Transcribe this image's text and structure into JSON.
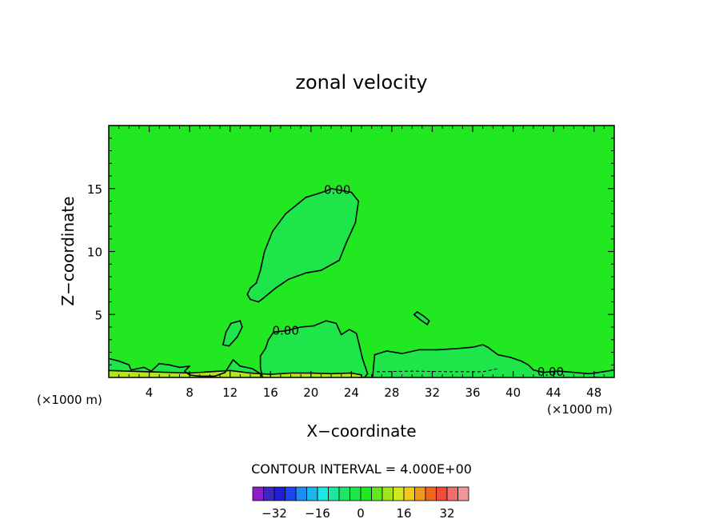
{
  "chart_data": {
    "type": "contour",
    "title": "zonal velocity",
    "xlabel": "X−coordinate",
    "ylabel": "Z−coordinate",
    "x_unit_left": "(×1000 m)",
    "x_unit_right": "(×1000 m)",
    "xlim": [
      0,
      50
    ],
    "ylim": [
      0,
      20
    ],
    "x_ticks": [
      4,
      8,
      12,
      16,
      20,
      24,
      28,
      32,
      36,
      40,
      44,
      48
    ],
    "y_ticks": [
      5,
      10,
      15
    ],
    "background_level_color": "#22e822",
    "contour_interval_text": "CONTOUR INTERVAL = 4.000E+00",
    "contour_labels": [
      {
        "text": "0.00",
        "x": 22.6,
        "y": 14.9
      },
      {
        "text": "0.00",
        "x": 17.5,
        "y": 3.7
      },
      {
        "text": "0.00",
        "x": 43.7,
        "y": 0.45
      }
    ],
    "regions": [
      {
        "name": "upper-positive-lobe",
        "color": "#1ee64a",
        "points": [
          [
            22,
            15
          ],
          [
            24,
            14.7
          ],
          [
            24.7,
            14
          ],
          [
            24.4,
            12.3
          ],
          [
            23.5,
            10.7
          ],
          [
            22.8,
            9.3
          ],
          [
            21,
            8.5
          ],
          [
            19.5,
            8.3
          ],
          [
            17.8,
            7.8
          ],
          [
            16.5,
            7.1
          ],
          [
            15.3,
            6.3
          ],
          [
            14.8,
            6
          ],
          [
            14,
            6.2
          ],
          [
            13.7,
            6.6
          ],
          [
            14,
            7.1
          ],
          [
            14.6,
            7.5
          ],
          [
            15,
            8.5
          ],
          [
            15.4,
            10
          ],
          [
            16.2,
            11.6
          ],
          [
            17.5,
            13
          ],
          [
            19.5,
            14.3
          ],
          [
            21.5,
            14.8
          ]
        ]
      },
      {
        "name": "small-lobe-left",
        "color": "#1ee64a",
        "points": [
          [
            11.3,
            2.6
          ],
          [
            11.6,
            3.6
          ],
          [
            12.1,
            4.3
          ],
          [
            13,
            4.5
          ],
          [
            13.2,
            4
          ],
          [
            12.7,
            3.2
          ],
          [
            11.9,
            2.5
          ]
        ]
      },
      {
        "name": "middle-positive-lobe",
        "color": "#1ee64a",
        "points": [
          [
            15,
            1.7
          ],
          [
            15.5,
            2.3
          ],
          [
            15.8,
            3
          ],
          [
            16.3,
            3.6
          ],
          [
            17.5,
            3.7
          ],
          [
            19,
            4
          ],
          [
            20.3,
            4.1
          ],
          [
            21.5,
            4.5
          ],
          [
            22.5,
            4.3
          ],
          [
            23,
            3.4
          ],
          [
            23.8,
            3.8
          ],
          [
            24.5,
            3.5
          ],
          [
            24.8,
            2.5
          ],
          [
            25.1,
            1.5
          ],
          [
            25.6,
            0.3
          ],
          [
            25.3,
            0
          ],
          [
            15.2,
            0
          ],
          [
            15,
            0.8
          ]
        ]
      },
      {
        "name": "right-positive-lobe",
        "color": "#1ee64a",
        "points": [
          [
            26.3,
            1.8
          ],
          [
            27.5,
            2.1
          ],
          [
            29,
            1.9
          ],
          [
            30.7,
            2.2
          ],
          [
            32.5,
            2.2
          ],
          [
            34.5,
            2.3
          ],
          [
            36,
            2.4
          ],
          [
            37,
            2.6
          ],
          [
            37.5,
            2.4
          ],
          [
            38.5,
            1.8
          ],
          [
            39.7,
            1.6
          ],
          [
            40.8,
            1.3
          ],
          [
            41.5,
            1
          ],
          [
            42,
            0.6
          ],
          [
            43,
            0.4
          ],
          [
            44.5,
            0.5
          ],
          [
            46,
            0.4
          ],
          [
            47.5,
            0.3
          ],
          [
            48.5,
            0.4
          ],
          [
            50,
            0.6
          ],
          [
            50,
            0
          ],
          [
            26.1,
            0
          ]
        ]
      },
      {
        "name": "bottom-left-strip",
        "color": "#1ee64a",
        "points": [
          [
            0,
            1.5
          ],
          [
            1,
            1.3
          ],
          [
            2,
            1
          ],
          [
            2.2,
            0.6
          ],
          [
            3.5,
            0.8
          ],
          [
            4.2,
            0.5
          ],
          [
            5,
            1.1
          ],
          [
            6,
            1
          ],
          [
            7,
            0.8
          ],
          [
            8,
            0.9
          ],
          [
            7.5,
            0.5
          ],
          [
            8,
            0.2
          ],
          [
            9,
            0.1
          ],
          [
            10.5,
            0.1
          ],
          [
            11.5,
            0.4
          ],
          [
            12.3,
            1.4
          ],
          [
            13,
            0.9
          ],
          [
            14.2,
            0.7
          ],
          [
            15,
            0.3
          ],
          [
            15.2,
            0
          ],
          [
            0,
            0
          ]
        ]
      },
      {
        "name": "surface-strip",
        "color": "#b4e61e",
        "points": [
          [
            0,
            0.55
          ],
          [
            4,
            0.45
          ],
          [
            8,
            0.35
          ],
          [
            12,
            0.55
          ],
          [
            14,
            0.35
          ],
          [
            16,
            0.25
          ],
          [
            18,
            0.35
          ],
          [
            20,
            0.35
          ],
          [
            22,
            0.3
          ],
          [
            24,
            0.35
          ],
          [
            25,
            0.2
          ],
          [
            25,
            0
          ],
          [
            0,
            0
          ]
        ]
      },
      {
        "name": "small-oval",
        "color": "#1ee64a",
        "points": [
          [
            30.2,
            5
          ],
          [
            30.8,
            4.6
          ],
          [
            31.5,
            4.2
          ],
          [
            31.7,
            4.5
          ],
          [
            31.1,
            4.9
          ],
          [
            30.5,
            5.2
          ]
        ]
      }
    ],
    "dashed_lines": [
      {
        "points": [
          [
            26.5,
            0.45
          ],
          [
            30,
            0.5
          ],
          [
            34,
            0.45
          ],
          [
            37,
            0.45
          ],
          [
            38.5,
            0.7
          ]
        ]
      }
    ],
    "colorbar": {
      "colors": [
        "#8c1ec8",
        "#3c28be",
        "#1e1ed2",
        "#1e46f0",
        "#1e8cf0",
        "#1eb4f0",
        "#1ee6e6",
        "#1ee6a0",
        "#1ee664",
        "#1ee64a",
        "#22e822",
        "#64e61e",
        "#a0e61e",
        "#d2e61e",
        "#f0c81e",
        "#f0961e",
        "#f0641e",
        "#f04b3c",
        "#f06e6e",
        "#f09696"
      ],
      "tick_labels": [
        "−32",
        "−16",
        "0",
        "16",
        "32"
      ]
    }
  }
}
